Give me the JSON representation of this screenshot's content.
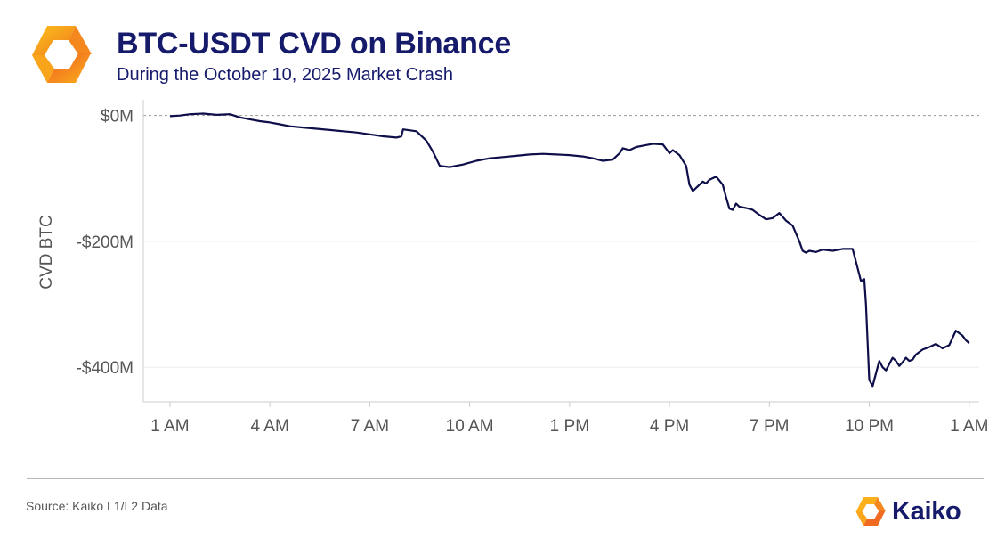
{
  "header": {
    "title": "BTC-USDT CVD on Binance",
    "subtitle": "During the October 10, 2025 Market Crash"
  },
  "footer": {
    "source": "Source: Kaiko L1/L2 Data",
    "brand": "Kaiko"
  },
  "colors": {
    "title": "#151a6b",
    "line": "#0e0f4a",
    "accent_orange_light": "#fbb01a",
    "accent_orange_dark": "#f06a22"
  },
  "chart_data": {
    "type": "line",
    "title": "BTC-USDT CVD on Binance",
    "subtitle": "During the October 10, 2025 Market Crash",
    "xlabel": "",
    "ylabel": "CVD BTC",
    "ylim": [
      -455,
      25
    ],
    "xlim": [
      -0.8,
      24.3
    ],
    "y_ticks": [
      0,
      -200,
      -400
    ],
    "y_tick_labels": [
      "$0M",
      "-$200M",
      "-$400M"
    ],
    "x_ticks": [
      1,
      4,
      7,
      10,
      13,
      16,
      19,
      22,
      25
    ],
    "x_tick_labels": [
      "1 AM",
      "4 AM",
      "7 AM",
      "10 AM",
      "1 PM",
      "4 PM",
      "7 PM",
      "10 PM",
      "1 AM"
    ],
    "reference_line": 0,
    "grid": true,
    "series": [
      {
        "name": "CVD BTC",
        "x": [
          0,
          0.3,
          0.6,
          1.0,
          1.4,
          1.8,
          2.1,
          2.4,
          2.7,
          3.0,
          3.3,
          3.6,
          4.0,
          4.4,
          4.8,
          5.2,
          5.6,
          6.0,
          6.4,
          6.8,
          6.95,
          7.0,
          7.4,
          7.7,
          7.9,
          8.1,
          8.4,
          8.8,
          9.2,
          9.6,
          10.0,
          10.4,
          10.8,
          11.2,
          11.6,
          12.0,
          12.4,
          12.7,
          13.0,
          13.3,
          13.5,
          13.6,
          13.8,
          14.0,
          14.2,
          14.5,
          14.8,
          15.0,
          15.1,
          15.3,
          15.5,
          15.6,
          15.7,
          15.8,
          15.9,
          16.0,
          16.1,
          16.2,
          16.4,
          16.6,
          16.7,
          16.8,
          16.9,
          17.0,
          17.1,
          17.3,
          17.5,
          17.7,
          17.9,
          18.1,
          18.3,
          18.5,
          18.7,
          18.9,
          19.0,
          19.1,
          19.2,
          19.4,
          19.6,
          19.9,
          20.2,
          20.5,
          20.75,
          20.85,
          20.9,
          21.0,
          21.1,
          21.2,
          21.3,
          21.4,
          21.5,
          21.6,
          21.7,
          21.8,
          21.9,
          22.0,
          22.1,
          22.2,
          22.3,
          22.4,
          22.6,
          22.8,
          23.0,
          23.2,
          23.4,
          23.6,
          23.8,
          23.9,
          24.0
        ],
        "values": [
          -1,
          0,
          2,
          3,
          1,
          2,
          -3,
          -6,
          -9,
          -11,
          -14,
          -17,
          -19,
          -21,
          -23,
          -25,
          -27,
          -30,
          -33,
          -35,
          -33,
          -22,
          -25,
          -40,
          -58,
          -80,
          -82,
          -78,
          -72,
          -68,
          -66,
          -64,
          -62,
          -61,
          -62,
          -63,
          -65,
          -68,
          -72,
          -70,
          -60,
          -52,
          -55,
          -50,
          -48,
          -45,
          -46,
          -60,
          -55,
          -63,
          -80,
          -110,
          -120,
          -115,
          -110,
          -105,
          -108,
          -102,
          -97,
          -110,
          -130,
          -148,
          -150,
          -140,
          -145,
          -147,
          -150,
          -158,
          -165,
          -163,
          -155,
          -167,
          -175,
          -200,
          -215,
          -218,
          -215,
          -217,
          -213,
          -215,
          -212,
          -212,
          -263,
          -260,
          -300,
          -420,
          -430,
          -410,
          -390,
          -400,
          -405,
          -395,
          -385,
          -390,
          -398,
          -392,
          -385,
          -390,
          -388,
          -380,
          -372,
          -368,
          -363,
          -370,
          -365,
          -342,
          -350,
          -357,
          -362
        ]
      }
    ]
  }
}
